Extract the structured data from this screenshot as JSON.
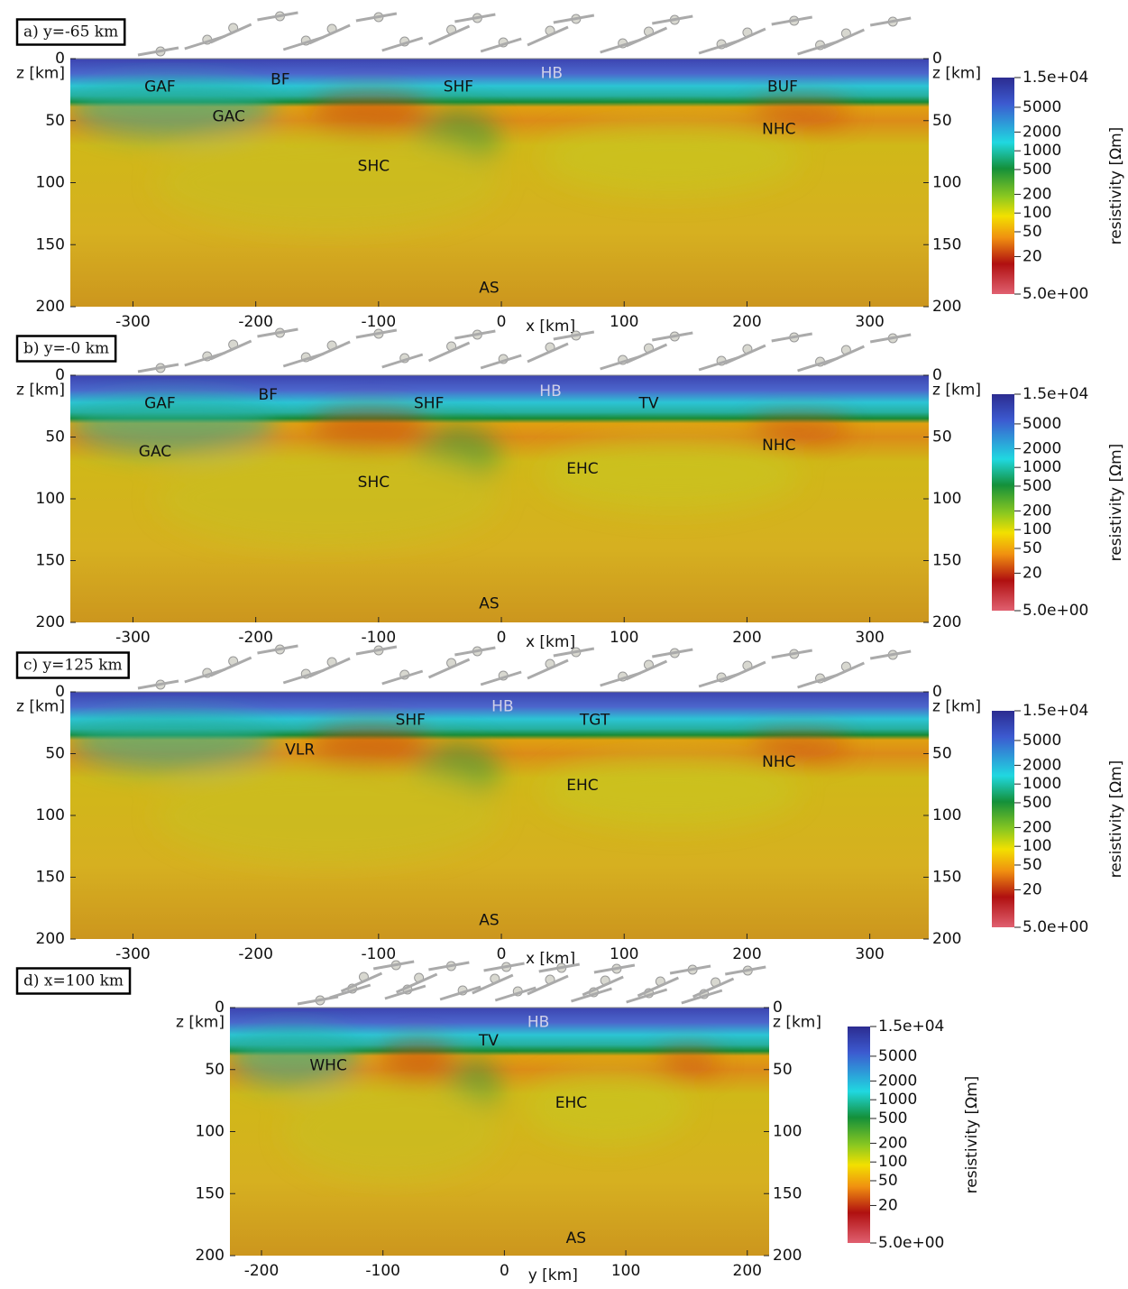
{
  "chart_data": [
    {
      "type": "section",
      "title": "a) y=-65 km",
      "x_label": "x [km]",
      "y_label": "z [km]",
      "xlim": [
        -351,
        348
      ],
      "ylim": [
        0,
        200
      ],
      "xticks": [
        -300,
        -200,
        -100,
        0,
        100,
        200,
        300
      ],
      "yticks": [
        0,
        50,
        100,
        150,
        200
      ],
      "annotations": [
        {
          "text": "GAF",
          "x": -278,
          "z": 23
        },
        {
          "text": "BF",
          "x": -180,
          "z": 17
        },
        {
          "text": "GAC",
          "x": -222,
          "z": 47
        },
        {
          "text": "SHF",
          "x": -35,
          "z": 23
        },
        {
          "text": "HB",
          "x": 41,
          "z": 12,
          "color": "#d0d0e8"
        },
        {
          "text": "BUF",
          "x": 229,
          "z": 23
        },
        {
          "text": "NHC",
          "x": 226,
          "z": 57
        },
        {
          "text": "SHC",
          "x": -104,
          "z": 87
        },
        {
          "text": "AS",
          "x": -10,
          "z": 185
        }
      ]
    },
    {
      "type": "section",
      "title": "b) y=-0 km",
      "x_label": "x [km]",
      "y_label": "z [km]",
      "xlim": [
        -351,
        348
      ],
      "ylim": [
        0,
        200
      ],
      "xticks": [
        -300,
        -200,
        -100,
        0,
        100,
        200,
        300
      ],
      "yticks": [
        0,
        50,
        100,
        150,
        200
      ],
      "annotations": [
        {
          "text": "GAF",
          "x": -278,
          "z": 23
        },
        {
          "text": "BF",
          "x": -190,
          "z": 16
        },
        {
          "text": "SHF",
          "x": -59,
          "z": 23
        },
        {
          "text": "HB",
          "x": 40,
          "z": 13,
          "color": "#d0d0e8"
        },
        {
          "text": "TV",
          "x": 120,
          "z": 23
        },
        {
          "text": "GAC",
          "x": -282,
          "z": 62
        },
        {
          "text": "NHC",
          "x": 226,
          "z": 57
        },
        {
          "text": "SHC",
          "x": -104,
          "z": 87
        },
        {
          "text": "EHC",
          "x": 66,
          "z": 76
        },
        {
          "text": "AS",
          "x": -10,
          "z": 185
        }
      ]
    },
    {
      "type": "section",
      "title": "c) y=125 km",
      "x_label": "x [km]",
      "y_label": "z [km]",
      "xlim": [
        -351,
        348
      ],
      "ylim": [
        0,
        200
      ],
      "xticks": [
        -300,
        -200,
        -100,
        0,
        100,
        200,
        300
      ],
      "yticks": [
        0,
        50,
        100,
        150,
        200
      ],
      "annotations": [
        {
          "text": "SHF",
          "x": -74,
          "z": 23
        },
        {
          "text": "HB",
          "x": 1,
          "z": 12,
          "color": "#d0d0e8"
        },
        {
          "text": "TGT",
          "x": 76,
          "z": 23
        },
        {
          "text": "VLR",
          "x": -164,
          "z": 47
        },
        {
          "text": "NHC",
          "x": 226,
          "z": 57
        },
        {
          "text": "EHC",
          "x": 66,
          "z": 76
        },
        {
          "text": "AS",
          "x": -10,
          "z": 185
        }
      ]
    },
    {
      "type": "section",
      "title": "d) x=100 km",
      "x_label": "y [km]",
      "y_label": "z [km]",
      "xlim": [
        -226,
        218
      ],
      "ylim": [
        0,
        200
      ],
      "xticks": [
        -200,
        -100,
        0,
        100,
        200
      ],
      "yticks": [
        0,
        50,
        100,
        150,
        200
      ],
      "annotations": [
        {
          "text": "HB",
          "x": 28,
          "z": 12,
          "color": "#d0d0e8"
        },
        {
          "text": "TV",
          "x": -13,
          "z": 27
        },
        {
          "text": "WHC",
          "x": -145,
          "z": 47
        },
        {
          "text": "EHC",
          "x": 55,
          "z": 77
        },
        {
          "text": "AS",
          "x": 59,
          "z": 186
        }
      ]
    }
  ],
  "colorbar": {
    "title": "resistivity [Ωm]",
    "log": true,
    "lim": [
      5,
      15000
    ],
    "ticks": [
      {
        "value": 15000,
        "label": "1.5e+04"
      },
      5000,
      2000,
      1000,
      500,
      200,
      100,
      50,
      20,
      {
        "value": 5,
        "label": "5.0e+00"
      }
    ]
  }
}
